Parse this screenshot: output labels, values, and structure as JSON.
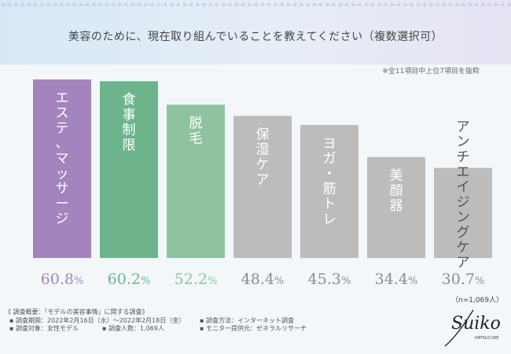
{
  "title": "美容のために、現在取り組んでいることを教えてください（複数選択可）",
  "note": "※全11項目中上位7項目を抜粋",
  "n_label": "（n=1,069人）",
  "colors": {
    "purple": "#a384bd",
    "green": "#6db48d",
    "lightgreen": "#8fc3a0",
    "gray": "#bcbcbc",
    "label_gray": "#8c8c8c"
  },
  "chart_data": {
    "type": "bar",
    "title": "美容のために、現在取り組んでいることを教えてください（複数選択可）",
    "categories": [
      "エステ、マッサージ",
      "食事制限",
      "脱毛",
      "保湿ケア",
      "ヨガ・筋トレ",
      "美顔器",
      "アンチエイジングケア"
    ],
    "values": [
      60.8,
      60.2,
      52.2,
      48.4,
      45.3,
      34.4,
      30.7
    ],
    "value_labels": [
      "60.8",
      "60.2",
      "52.2",
      "48.4",
      "45.3",
      "34.4",
      "30.7"
    ],
    "unit": "%",
    "ylim": [
      0,
      60.8
    ],
    "grid": false,
    "legend": "none"
  },
  "footer": {
    "heading": "《 調査概要：「モデルの美容事情」に関する調査》",
    "period": "▪ 調査期間：2022年2月16日（水）〜2022年2月18日（金）",
    "method": "▪ 調査方法：インターネット調査",
    "target": "▪ 調査対象：女性モデル",
    "count": "▪ 調査人数：1,069人",
    "provider": "▪ モニター提供元：ゼネラルリサーチ"
  },
  "logo": {
    "name": "Suiko",
    "sub": "HATSUCURE"
  }
}
